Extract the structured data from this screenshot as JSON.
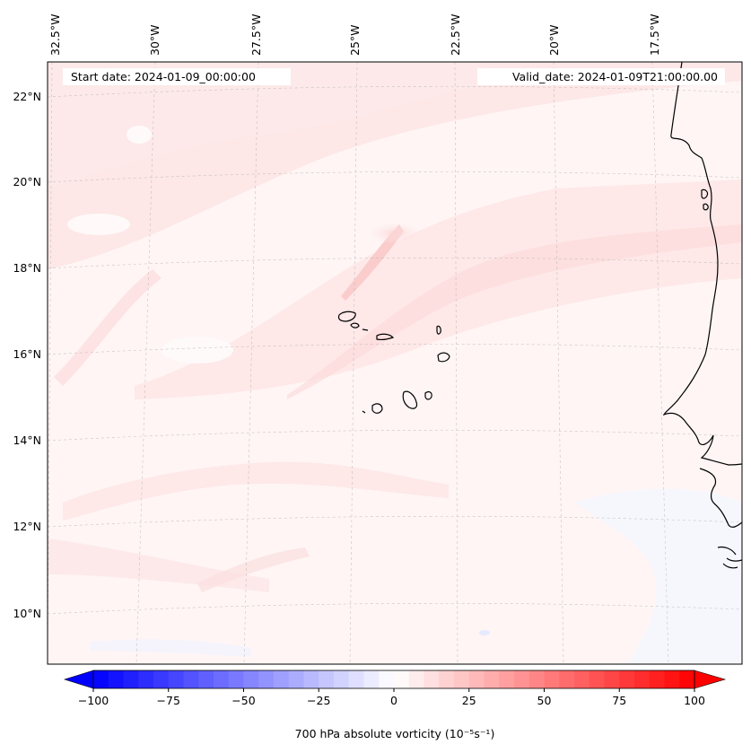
{
  "map": {
    "start_date": "Start date: 2024-01-09_00:00:00",
    "valid_date": "Valid_date: 2024-01-09T21:00:00.00",
    "lon_labels": [
      "32.5°W",
      "30°W",
      "27.5°W",
      "25°W",
      "22.5°W",
      "20°W",
      "17.5°W"
    ],
    "lat_labels": [
      "22°N",
      "20°N",
      "18°N",
      "16°N",
      "14°N",
      "12°N",
      "10°N"
    ],
    "gridlines": true,
    "field": "700 hPa absolute vorticity",
    "coastline_color": "#000000"
  },
  "colorbar": {
    "label": "700 hPa absolute vorticity (10⁻⁵s⁻¹)",
    "range": [
      -100,
      100
    ],
    "tick_labels": [
      "−100",
      "−75",
      "−50",
      "−25",
      "0",
      "25",
      "50",
      "75",
      "100"
    ],
    "color_low": "#0000ff",
    "color_mid": "#ffffff",
    "color_high": "#ff0000",
    "extend": "both"
  }
}
